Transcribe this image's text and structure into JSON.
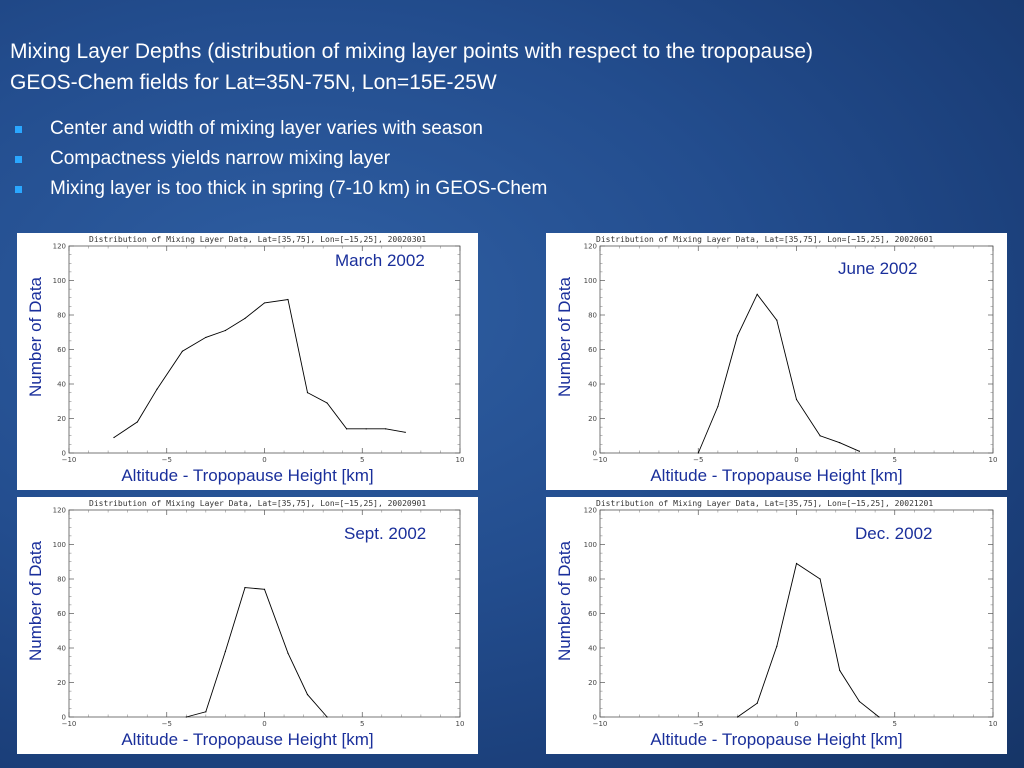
{
  "title": {
    "line1": "Mixing Layer Depths (distribution of mixing layer points with respect to the tropopause)",
    "line2": "GEOS-Chem fields for Lat=35N-75N, Lon=15E-25W"
  },
  "bullets": [
    "Center and width of mixing layer varies with season",
    "Compactness yields narrow mixing layer",
    "Mixing layer is too thick in spring (7-10 km) in GEOS-Chem"
  ],
  "colors": {
    "bullet": "#2aa7ff",
    "label": "#1a2f9b",
    "line": "#000000"
  },
  "chart_data": [
    {
      "type": "line",
      "title": "Distribution of Mixing Layer Data, Lat=[35,75], Lon=[−15,25], 20020301",
      "annotation": "March 2002",
      "xlabel": "Altitude - Tropopause Height [km]",
      "ylabel": "Number of Data",
      "xlim": [
        -10,
        10
      ],
      "ylim": [
        0,
        120
      ],
      "x_ticks": [
        "−10",
        "−5",
        "0",
        "5",
        "10"
      ],
      "y_ticks": [
        "0",
        "20",
        "40",
        "60",
        "80",
        "100",
        "120"
      ],
      "x": [
        -7.7,
        -6.5,
        -5.5,
        -4.2,
        -3,
        -2,
        -1,
        0,
        1.2,
        2.2,
        3.2,
        4.2,
        5.2,
        6.2,
        7.2
      ],
      "y": [
        9,
        18,
        37,
        59,
        67,
        71,
        78,
        87,
        89,
        35,
        29,
        14,
        14,
        14,
        12
      ]
    },
    {
      "type": "line",
      "title": "Distribution of Mixing Layer Data, Lat=[35,75], Lon=[−15,25], 20020601",
      "annotation": "June 2002",
      "xlabel": "Altitude - Tropopause Height [km]",
      "ylabel": "Number of Data",
      "xlim": [
        -10,
        10
      ],
      "ylim": [
        0,
        120
      ],
      "x_ticks": [
        "−10",
        "−5",
        "0",
        "5",
        "10"
      ],
      "y_ticks": [
        "0",
        "20",
        "40",
        "60",
        "80",
        "100",
        "120"
      ],
      "x": [
        -5,
        -4,
        -3,
        -2,
        -1,
        0,
        1.2,
        2.2,
        3.2
      ],
      "y": [
        0,
        27,
        68,
        92,
        77,
        31,
        10,
        6,
        1
      ]
    },
    {
      "type": "line",
      "title": "Distribution of Mixing Layer Data, Lat=[35,75], Lon=[−15,25], 20020901",
      "annotation": "Sept. 2002",
      "xlabel": "Altitude - Tropopause Height [km]",
      "ylabel": "Number of Data",
      "xlim": [
        -10,
        10
      ],
      "ylim": [
        0,
        120
      ],
      "x_ticks": [
        "−10",
        "−5",
        "0",
        "5",
        "10"
      ],
      "y_ticks": [
        "0",
        "20",
        "40",
        "60",
        "80",
        "100",
        "120"
      ],
      "x": [
        -4,
        -3,
        -2,
        -1,
        0,
        1.2,
        2.2,
        3.2
      ],
      "y": [
        0,
        3,
        38,
        75,
        74,
        37,
        13,
        0
      ]
    },
    {
      "type": "line",
      "title": "Distribution of Mixing Layer Data, Lat=[35,75], Lon=[−15,25], 20021201",
      "annotation": "Dec. 2002",
      "xlabel": "Altitude - Tropopause Height [km]",
      "ylabel": "Number of Data",
      "xlim": [
        -10,
        10
      ],
      "ylim": [
        0,
        120
      ],
      "x_ticks": [
        "−10",
        "−5",
        "0",
        "5",
        "10"
      ],
      "y_ticks": [
        "0",
        "20",
        "40",
        "60",
        "80",
        "100",
        "120"
      ],
      "x": [
        -3,
        -2,
        -1,
        0,
        1.2,
        2.2,
        3.2,
        4.2
      ],
      "y": [
        0,
        8,
        41,
        89,
        80,
        27,
        9,
        0
      ]
    }
  ]
}
